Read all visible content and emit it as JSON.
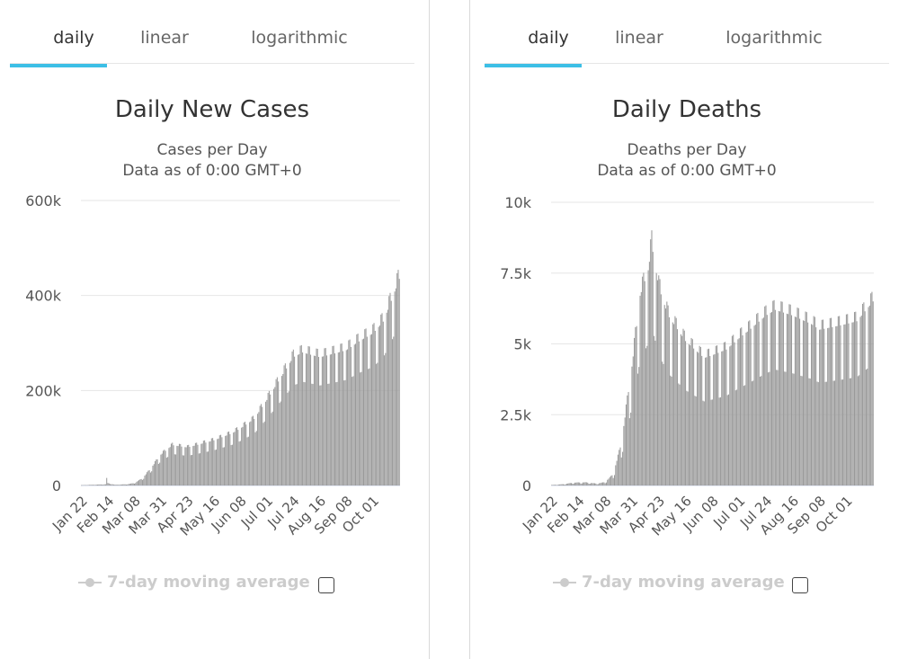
{
  "tabs": [
    "daily",
    "linear",
    "logarithmic"
  ],
  "active_tab": 0,
  "legend_label": "7-day moving average",
  "colors": {
    "bar": "#999999",
    "accent": "#3cbfe6",
    "grid": "#e6e6e6",
    "legend": "#cccccc"
  },
  "chart_data": [
    {
      "type": "bar",
      "title": "Daily New Cases",
      "subtitle_line1": "Cases per Day",
      "subtitle_line2": "Data as of 0:00 GMT+0",
      "xlabel": "",
      "ylabel": "",
      "ylim": [
        0,
        600000
      ],
      "y_ticks": [
        0,
        200000,
        400000,
        600000
      ],
      "y_tick_labels": [
        "0",
        "200k",
        "400k",
        "600k"
      ],
      "x_tick_labels": [
        "Jan 22",
        "Feb 14",
        "Mar 08",
        "Mar 31",
        "Apr 23",
        "May 16",
        "Jun 08",
        "Jul 01",
        "Jul 24",
        "Aug 16",
        "Sep 08",
        "Oct 01"
      ],
      "grid": true,
      "legend_position": "bottom",
      "date_range": [
        "2020-01-22",
        "2020-10-24"
      ],
      "series": [
        {
          "label_series": "daily",
          "anchors": [
            [
              "2020-01-22",
              600
            ],
            [
              "2020-02-12",
              2500
            ],
            [
              "2020-02-13",
              15000
            ],
            [
              "2020-02-14",
              5000
            ],
            [
              "2020-02-20",
              1500
            ],
            [
              "2020-03-01",
              2500
            ],
            [
              "2020-03-08",
              5000
            ],
            [
              "2020-03-15",
              15000
            ],
            [
              "2020-03-22",
              35000
            ],
            [
              "2020-03-31",
              65000
            ],
            [
              "2020-04-10",
              85000
            ],
            [
              "2020-04-23",
              80000
            ],
            [
              "2020-05-01",
              85000
            ],
            [
              "2020-05-16",
              95000
            ],
            [
              "2020-06-01",
              110000
            ],
            [
              "2020-06-08",
              120000
            ],
            [
              "2020-06-20",
              140000
            ],
            [
              "2020-07-01",
              180000
            ],
            [
              "2020-07-10",
              215000
            ],
            [
              "2020-07-24",
              270000
            ],
            [
              "2020-08-01",
              280000
            ],
            [
              "2020-08-16",
              270000
            ],
            [
              "2020-09-01",
              280000
            ],
            [
              "2020-09-08",
              285000
            ],
            [
              "2020-09-20",
              305000
            ],
            [
              "2020-10-01",
              320000
            ],
            [
              "2020-10-10",
              345000
            ],
            [
              "2020-10-18",
              395000
            ],
            [
              "2020-10-24",
              435000
            ]
          ],
          "weekly_dip": 0.78
        }
      ]
    },
    {
      "type": "bar",
      "title": "Daily Deaths",
      "subtitle_line1": "Deaths per Day",
      "subtitle_line2": "Data as of 0:00 GMT+0",
      "xlabel": "",
      "ylabel": "",
      "ylim": [
        0,
        10000
      ],
      "y_ticks": [
        0,
        2500,
        5000,
        7500,
        10000
      ],
      "y_tick_labels": [
        "0",
        "2.5k",
        "5k",
        "7.5k",
        "10k"
      ],
      "x_tick_labels": [
        "Jan 22",
        "Feb 14",
        "Mar 08",
        "Mar 31",
        "Apr 23",
        "May 16",
        "Jun 08",
        "Jul 01",
        "Jul 24",
        "Aug 16",
        "Sep 08",
        "Oct 01"
      ],
      "grid": true,
      "legend_position": "bottom",
      "date_range": [
        "2020-01-22",
        "2020-10-24"
      ],
      "series": [
        {
          "label_series": "daily",
          "anchors": [
            [
              "2020-01-22",
              17
            ],
            [
              "2020-02-01",
              45
            ],
            [
              "2020-02-10",
              100
            ],
            [
              "2020-02-20",
              110
            ],
            [
              "2020-03-01",
              65
            ],
            [
              "2020-03-08",
              120
            ],
            [
              "2020-03-15",
              400
            ],
            [
              "2020-03-22",
              1500
            ],
            [
              "2020-03-31",
              4200
            ],
            [
              "2020-04-07",
              6700
            ],
            [
              "2020-04-14",
              7600
            ],
            [
              "2020-04-17",
              8500
            ],
            [
              "2020-04-23",
              7000
            ],
            [
              "2020-05-01",
              6000
            ],
            [
              "2020-05-16",
              5100
            ],
            [
              "2020-06-01",
              4500
            ],
            [
              "2020-06-08",
              4600
            ],
            [
              "2020-06-20",
              4800
            ],
            [
              "2020-07-01",
              5200
            ],
            [
              "2020-07-10",
              5500
            ],
            [
              "2020-07-24",
              6000
            ],
            [
              "2020-08-01",
              6200
            ],
            [
              "2020-08-16",
              6000
            ],
            [
              "2020-09-01",
              5700
            ],
            [
              "2020-09-08",
              5500
            ],
            [
              "2020-09-20",
              5600
            ],
            [
              "2020-10-01",
              5700
            ],
            [
              "2020-10-10",
              5800
            ],
            [
              "2020-10-24",
              6500
            ]
          ],
          "weekly_dip": 0.66
        }
      ]
    }
  ]
}
